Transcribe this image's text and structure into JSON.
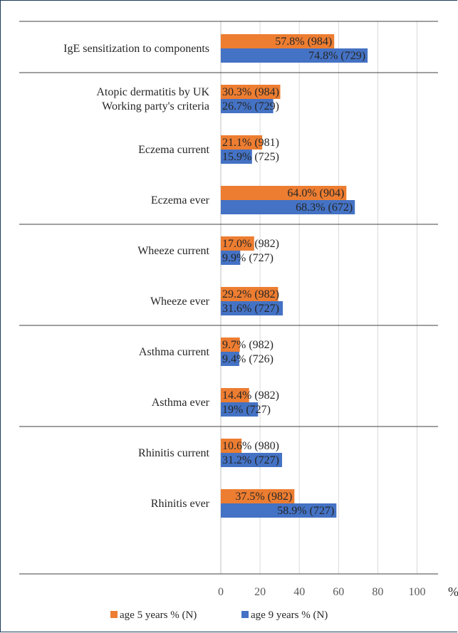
{
  "chart_data": {
    "type": "bar",
    "orientation": "horizontal",
    "categories": [
      "IgE sensitization to components",
      "Atopic dermatitis by UK Working party's criteria",
      "Eczema current",
      "Eczema ever",
      "Wheeze current",
      "Wheeze ever",
      "Asthma current",
      "Asthma ever",
      "Rhinitis current",
      "Rhinitis ever"
    ],
    "category_lines": [
      [
        "IgE sensitization to components"
      ],
      [
        "Atopic dermatitis by UK",
        "Working party's criteria"
      ],
      [
        "Eczema current"
      ],
      [
        "Eczema ever"
      ],
      [
        "Wheeze current"
      ],
      [
        "Wheeze ever"
      ],
      [
        "Asthma current"
      ],
      [
        "Asthma ever"
      ],
      [
        "Rhinitis current"
      ],
      [
        "Rhinitis ever"
      ]
    ],
    "series": [
      {
        "name": "age 5 years % (N)",
        "color": "#ed7d31",
        "values": [
          57.8,
          30.3,
          21.1,
          64.0,
          17.0,
          29.2,
          9.7,
          14.4,
          10.6,
          37.5
        ],
        "labels": [
          "57.8% (984)",
          "30.3% (984)",
          "21.1% (981)",
          "64.0% (904)",
          "17.0% (982)",
          "29.2% (982)",
          "9.7% (982)",
          "14.4% (982)",
          "10.6% (980)",
          "37.5% (982)"
        ]
      },
      {
        "name": "age 9 years % (N)",
        "color": "#4472c4",
        "values": [
          74.8,
          26.7,
          15.9,
          68.3,
          9.9,
          31.6,
          9.4,
          19,
          31.2,
          58.9
        ],
        "labels": [
          "74.8% (729)",
          "26.7% (729)",
          "15.9% (725)",
          "68.3% (672)",
          "9.9% (727)",
          "31.6% (727)",
          "9.4% (726)",
          "19% (727)",
          "31.2% (727)",
          "58.9% (727)"
        ]
      }
    ],
    "group_separators_after": [
      0,
      3,
      5,
      7
    ],
    "xlim": [
      0,
      110
    ],
    "x_ticks": [
      0,
      20,
      40,
      60,
      80,
      100
    ],
    "x_unit": "%",
    "grid": "vertical",
    "legend": {
      "position": "bottom"
    }
  }
}
